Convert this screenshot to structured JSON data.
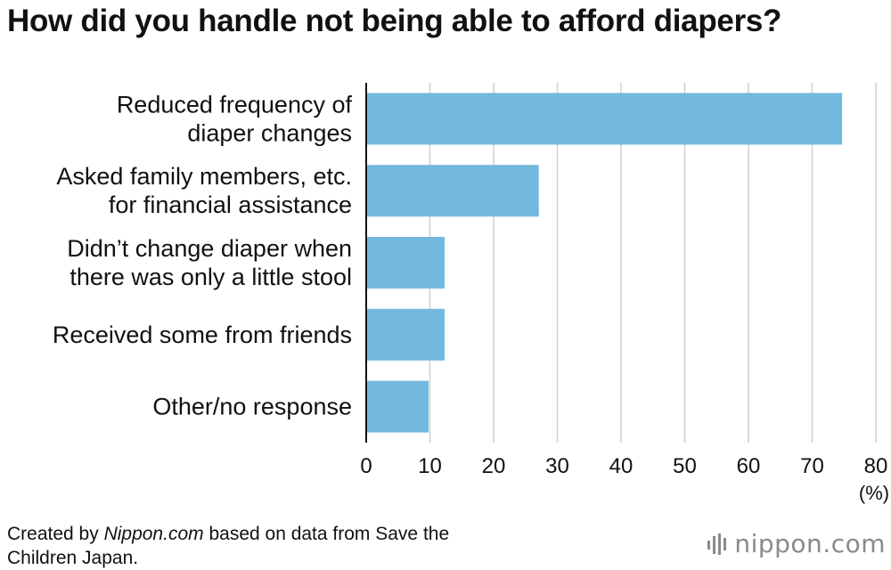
{
  "title": "How did you handle not being able to afford diapers?",
  "footer": {
    "prefix": "Created by ",
    "source_name": "Nippon.com",
    "suffix_line1": " based on data from Save the",
    "line2": "Children Japan."
  },
  "brand": {
    "name": "nippon",
    "dot": ".",
    "tld": "com"
  },
  "colors": {
    "bar": "#73b9dd",
    "grid": "#cfcfcf",
    "axis": "#111111",
    "text": "#111111",
    "brand": "#8a8a8a"
  },
  "chart_data": {
    "type": "bar",
    "orientation": "horizontal",
    "title": "How did you handle not being able to afford diapers?",
    "categories": [
      [
        "Reduced frequency of",
        "diaper changes"
      ],
      [
        "Asked family members, etc.",
        "for financial assistance"
      ],
      [
        "Didn’t change diaper when",
        "there was only a little stool"
      ],
      [
        "Received some from friends"
      ],
      [
        "Other/no response"
      ]
    ],
    "values": [
      74.7,
      27.1,
      12.3,
      12.3,
      9.8
    ],
    "xlim": [
      0,
      80
    ],
    "xticks": [
      0,
      10,
      20,
      30,
      40,
      50,
      60,
      70,
      80
    ],
    "xunit": "(%)",
    "grid": true,
    "legend": "none"
  }
}
